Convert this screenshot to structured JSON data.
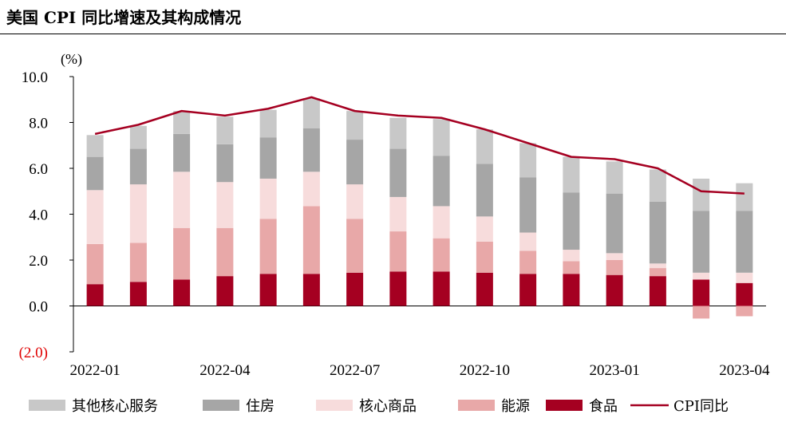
{
  "title": "美国 CPI 同比增速及其构成情况",
  "chart_data": {
    "type": "bar",
    "stacked": true,
    "unit_label": "(%)",
    "ylim": [
      -2,
      10
    ],
    "yticks": [
      {
        "value": 10,
        "label": "10.0"
      },
      {
        "value": 8,
        "label": "8.0"
      },
      {
        "value": 6,
        "label": "6.0"
      },
      {
        "value": 4,
        "label": "4.0"
      },
      {
        "value": 2,
        "label": "2.0"
      },
      {
        "value": 0,
        "label": "0.0"
      },
      {
        "value": -2,
        "label": "(2.0)"
      }
    ],
    "categories": [
      "2022-01",
      "2022-02",
      "2022-03",
      "2022-04",
      "2022-05",
      "2022-06",
      "2022-07",
      "2022-08",
      "2022-09",
      "2022-10",
      "2022-11",
      "2022-12",
      "2023-01",
      "2023-02",
      "2023-03",
      "2023-04"
    ],
    "x_tick_labels": [
      {
        "index": 0,
        "label": "2022-01"
      },
      {
        "index": 3,
        "label": "2022-04"
      },
      {
        "index": 6,
        "label": "2022-07"
      },
      {
        "index": 9,
        "label": "2022-10"
      },
      {
        "index": 12,
        "label": "2023-01"
      },
      {
        "index": 15,
        "label": "2023-04"
      }
    ],
    "series": [
      {
        "name": "食品",
        "color": "#a50021",
        "values": [
          0.95,
          1.05,
          1.15,
          1.3,
          1.4,
          1.4,
          1.45,
          1.5,
          1.5,
          1.45,
          1.4,
          1.4,
          1.35,
          1.3,
          1.15,
          1.0
        ]
      },
      {
        "name": "能源",
        "color": "#e8a8a8",
        "values": [
          1.75,
          1.7,
          2.25,
          2.1,
          2.4,
          2.95,
          2.35,
          1.75,
          1.45,
          1.35,
          1.0,
          0.55,
          0.65,
          0.35,
          -0.55,
          -0.45
        ]
      },
      {
        "name": "核心商品",
        "color": "#f7dcdc",
        "values": [
          2.35,
          2.55,
          2.45,
          2.0,
          1.75,
          1.5,
          1.5,
          1.5,
          1.4,
          1.1,
          0.8,
          0.5,
          0.3,
          0.2,
          0.3,
          0.45
        ]
      },
      {
        "name": "住房",
        "color": "#a6a6a6",
        "values": [
          1.45,
          1.55,
          1.65,
          1.65,
          1.8,
          1.9,
          1.95,
          2.1,
          2.2,
          2.3,
          2.4,
          2.5,
          2.6,
          2.7,
          2.7,
          2.7
        ]
      },
      {
        "name": "其他核心服务",
        "color": "#c8c8c8",
        "values": [
          0.95,
          1.0,
          1.0,
          1.2,
          1.2,
          1.3,
          1.25,
          1.35,
          1.6,
          1.5,
          1.5,
          1.55,
          1.4,
          1.4,
          1.4,
          1.2
        ]
      }
    ],
    "line": {
      "name": "CPI同比",
      "color": "#a50021",
      "values": [
        7.5,
        7.9,
        8.5,
        8.3,
        8.6,
        9.1,
        8.5,
        8.3,
        8.2,
        7.7,
        7.1,
        6.5,
        6.4,
        6.0,
        5.0,
        4.9
      ]
    },
    "legend": {
      "placement": "bottom",
      "order": [
        "其他核心服务",
        "住房",
        "核心商品",
        "能源",
        "食品",
        "CPI同比"
      ]
    }
  }
}
